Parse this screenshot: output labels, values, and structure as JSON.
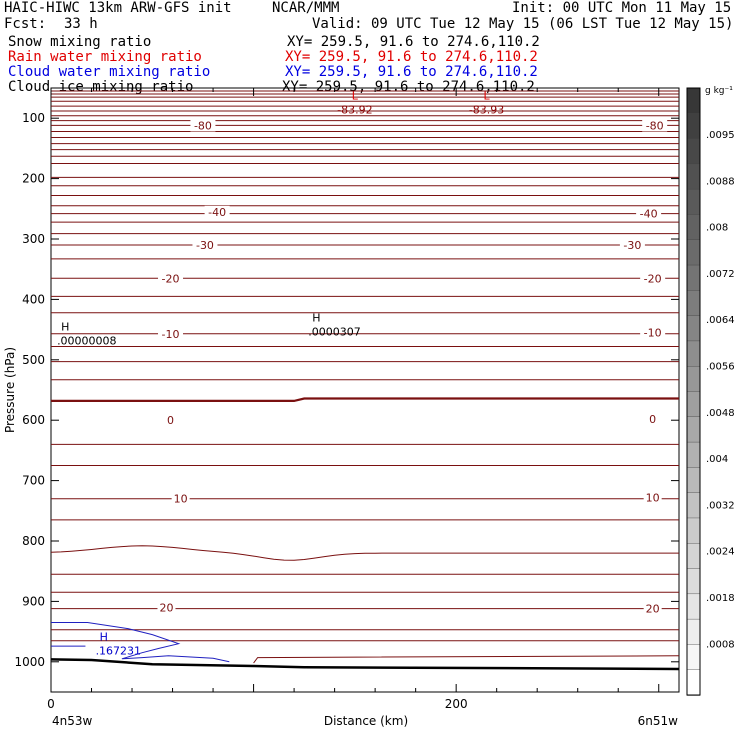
{
  "header": {
    "model": "HAIC-HIWC 13km ARW-GFS init",
    "org": "NCAR/MMM",
    "init": "Init: 00 UTC Mon 11 May 15",
    "fcst_label": "Fcst:",
    "fcst_value": "33 h",
    "valid": "Valid: 09 UTC Tue 12 May 15 (06 LST Tue 12 May 15)"
  },
  "fields": [
    {
      "name": "Snow mixing ratio",
      "xy": "XY= 259.5, 91.6 to 274.6,110.2",
      "color": "#000000"
    },
    {
      "name": "Rain water mixing ratio",
      "xy": "XY= 259.5, 91.6 to 274.6,110.2",
      "color": "#ff0000"
    },
    {
      "name": "Cloud water mixing ratio",
      "xy": "XY= 259.5, 91.6 to 274.6,110.2",
      "color": "#0000ff"
    },
    {
      "name": "Cloud ice mixing ratio",
      "xy": "XY= 259.5, 91.6 to 274.6,110.2",
      "color": "#000000"
    }
  ],
  "colorbar": {
    "unit": "g kg⁻¹",
    "ticks": [
      ".0095",
      ".0088",
      ".008",
      ".0072",
      ".0064",
      ".0056",
      ".0048",
      ".004",
      ".0032",
      ".0024",
      ".0018",
      ".0008"
    ]
  },
  "chart_data": {
    "type": "contour",
    "xlabel": "Distance (km)",
    "ylabel": "Pressure (hPa)",
    "xlim": [
      0,
      310
    ],
    "ylim": [
      1050,
      50
    ],
    "x_ticks": [
      0,
      200
    ],
    "y_ticks": [
      100,
      200,
      300,
      400,
      500,
      600,
      700,
      800,
      900,
      1000
    ],
    "x_start_label": "4n53w",
    "x_end_label": "6n51w",
    "temperature_contour_labels": [
      {
        "value": "-80",
        "x": 75,
        "p": 112
      },
      {
        "value": "-80",
        "x": 298,
        "p": 112
      },
      {
        "value": "-40",
        "x": 82,
        "p": 255
      },
      {
        "value": "-40",
        "x": 295,
        "p": 258
      },
      {
        "value": "-30",
        "x": 76,
        "p": 310
      },
      {
        "value": "-30",
        "x": 287,
        "p": 310
      },
      {
        "value": "-20",
        "x": 59,
        "p": 365
      },
      {
        "value": "-20",
        "x": 297,
        "p": 365
      },
      {
        "value": "-10",
        "x": 59,
        "p": 457
      },
      {
        "value": "-10",
        "x": 297,
        "p": 455
      },
      {
        "value": "0",
        "x": 59,
        "p": 600
      },
      {
        "value": "0",
        "x": 297,
        "p": 598
      },
      {
        "value": "10",
        "x": 64,
        "p": 730
      },
      {
        "value": "10",
        "x": 297,
        "p": 728
      },
      {
        "value": "20",
        "x": 57,
        "p": 910
      },
      {
        "value": "20",
        "x": 297,
        "p": 912
      }
    ],
    "extrema": [
      {
        "type": "L",
        "value": "-83.92",
        "x": 150,
        "p": 82,
        "color": "#8b0000"
      },
      {
        "type": "L",
        "value": "-83.93",
        "x": 215,
        "p": 82,
        "color": "#8b0000"
      },
      {
        "type": "H",
        "value": ".00000008",
        "x": 3,
        "p": 465,
        "color": "#000000"
      },
      {
        "type": "H",
        "value": ".0000307",
        "x": 127,
        "p": 450,
        "color": "#000000"
      },
      {
        "type": "H",
        "value": ".167231",
        "x": 22,
        "p": 978,
        "color": "#0000cc"
      }
    ]
  }
}
